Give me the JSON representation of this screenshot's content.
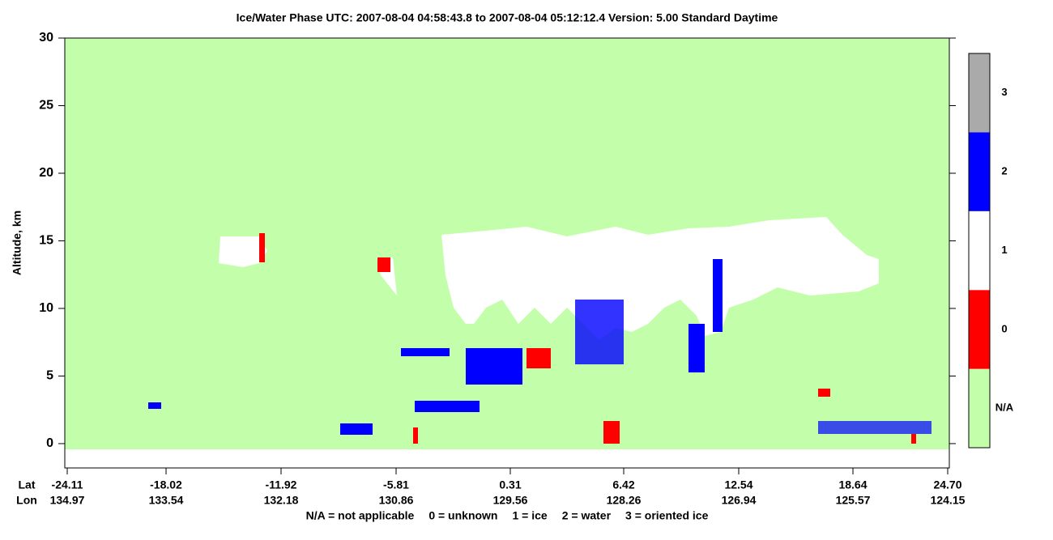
{
  "chart_data": {
    "type": "heatmap",
    "title": "Ice/Water Phase    UTC:  2007-08-04   04:58:43.8  to  2007-08-04   05:12:12.4    Version: 5.00  Standard Daytime",
    "ylabel": "Altitude, km",
    "ylim": [
      -1.8,
      30
    ],
    "yticks": [
      0,
      5,
      10,
      15,
      20,
      25,
      30
    ],
    "x_row_labels": [
      "Lat",
      "Lon"
    ],
    "lat": [
      "-24.11",
      "-18.02",
      "-11.92",
      "-5.81",
      "0.31",
      "6.42",
      "12.54",
      "18.64",
      "24.70"
    ],
    "lon": [
      "134.97",
      "133.54",
      "132.18",
      "130.86",
      "129.56",
      "128.26",
      "126.94",
      "125.57",
      "124.15"
    ],
    "key": [
      "N/A = not applicable",
      "0 = unknown",
      "1 = ice",
      "2 = water",
      "3 = oriented ice"
    ],
    "colorbar": {
      "levels": [
        "N/A",
        0,
        1,
        2,
        3
      ],
      "colors": [
        "#c3ffaa",
        "#ff0000",
        "#ffffff",
        "#0000ff",
        "#aaaaaa"
      ]
    }
  }
}
